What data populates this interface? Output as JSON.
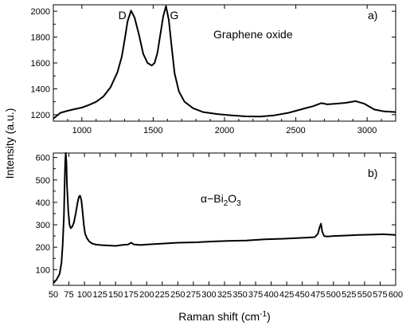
{
  "chart_data": [
    {
      "type": "line",
      "panel_label": "a)",
      "annotation": "Graphene oxide",
      "peak_labels": [
        {
          "text": "D",
          "x": 1345
        },
        {
          "text": "G",
          "x": 1590
        }
      ],
      "xlim": [
        800,
        3200
      ],
      "ylim": [
        1150,
        2050
      ],
      "xticks": [
        1000,
        1500,
        2000,
        2500,
        3000
      ],
      "yticks": [
        1200,
        1400,
        1600,
        1800,
        2000
      ],
      "series": [
        {
          "x": [
            800,
            850,
            900,
            950,
            1000,
            1050,
            1100,
            1150,
            1200,
            1250,
            1280,
            1300,
            1320,
            1345,
            1370,
            1400,
            1430,
            1460,
            1490,
            1510,
            1530,
            1550,
            1570,
            1590,
            1610,
            1630,
            1650,
            1680,
            1720,
            1780,
            1850,
            1950,
            2050,
            2150,
            2250,
            2350,
            2450,
            2550,
            2620,
            2680,
            2720,
            2780,
            2850,
            2920,
            2980,
            3050,
            3120,
            3200
          ],
          "y": [
            1170,
            1215,
            1230,
            1243,
            1255,
            1275,
            1300,
            1340,
            1410,
            1530,
            1650,
            1780,
            1920,
            2005,
            1950,
            1820,
            1670,
            1600,
            1580,
            1600,
            1680,
            1820,
            1960,
            2040,
            1930,
            1720,
            1520,
            1380,
            1300,
            1250,
            1220,
            1205,
            1195,
            1187,
            1185,
            1195,
            1215,
            1245,
            1265,
            1290,
            1280,
            1285,
            1292,
            1305,
            1285,
            1240,
            1225,
            1220
          ]
        }
      ]
    },
    {
      "type": "line",
      "panel_label": "b)",
      "annotation": {
        "base": "α−Bi",
        "sub1": "2",
        "mid": "O",
        "sub2": "3"
      },
      "xlim": [
        50,
        600
      ],
      "ylim": [
        30,
        620
      ],
      "xticks": [
        50,
        75,
        100,
        125,
        150,
        175,
        200,
        225,
        250,
        275,
        300,
        325,
        350,
        375,
        400,
        425,
        450,
        475,
        500,
        525,
        550,
        575,
        600
      ],
      "yticks": [
        100,
        200,
        300,
        400,
        500,
        600
      ],
      "series": [
        {
          "x": [
            50,
            55,
            60,
            63,
            65,
            67,
            68,
            69,
            70,
            71,
            72,
            74,
            76,
            78,
            80,
            83,
            86,
            89,
            91,
            93,
            95,
            97,
            99,
            101,
            104,
            108,
            112,
            118,
            125,
            135,
            150,
            160,
            170,
            175,
            180,
            190,
            200,
            220,
            250,
            280,
            300,
            330,
            360,
            390,
            420,
            450,
            470,
            475,
            478,
            480,
            482,
            485,
            490,
            500,
            520,
            540,
            560,
            580,
            600
          ],
          "y": [
            40,
            55,
            80,
            130,
            210,
            340,
            470,
            580,
            620,
            580,
            470,
            360,
            300,
            285,
            290,
            310,
            350,
            400,
            425,
            430,
            410,
            360,
            300,
            260,
            240,
            225,
            217,
            212,
            210,
            208,
            206,
            210,
            212,
            220,
            212,
            210,
            212,
            215,
            220,
            222,
            225,
            228,
            230,
            235,
            238,
            242,
            245,
            260,
            290,
            305,
            270,
            250,
            248,
            250,
            252,
            255,
            256,
            258,
            255
          ]
        }
      ]
    }
  ],
  "axes": {
    "ylabel": "Intensity (a.u.)",
    "xlabel": {
      "base": "Raman shift (cm",
      "sup": "-1",
      "close": ")"
    }
  }
}
